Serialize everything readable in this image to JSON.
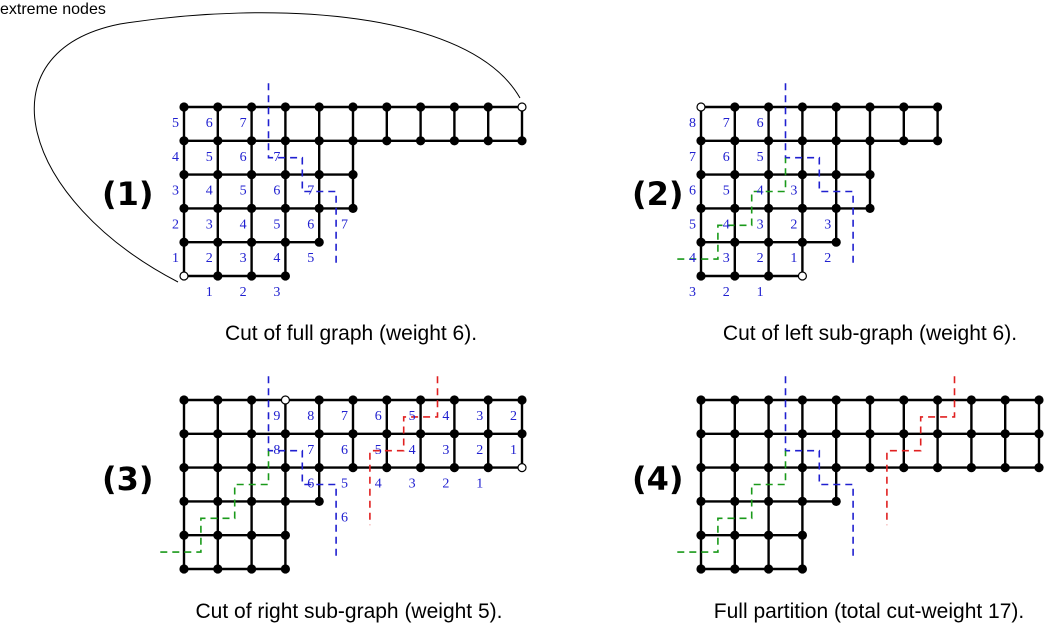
{
  "annotation": "extreme nodes",
  "colors": {
    "blue": "#2020d0",
    "green": "#1a9a1a",
    "red": "#e02020",
    "edge": "#000000"
  },
  "panels": [
    {
      "id": 1,
      "label": "(1)",
      "caption": "Cut of full graph (weight 6).",
      "rows": [
        [
          0,
          10
        ],
        [
          0,
          10
        ],
        [
          0,
          5
        ],
        [
          0,
          5
        ],
        [
          0,
          4
        ],
        [
          0,
          3
        ]
      ],
      "extreme_nodes": [
        [
          0,
          10
        ],
        [
          5,
          0
        ]
      ],
      "numbers": [
        {
          "t": "5",
          "c": 0,
          "r": 0
        },
        {
          "t": "6",
          "c": 1,
          "r": 0
        },
        {
          "t": "7",
          "c": 2,
          "r": 0
        },
        {
          "t": "4",
          "c": 0,
          "r": 1
        },
        {
          "t": "5",
          "c": 1,
          "r": 1
        },
        {
          "t": "6",
          "c": 2,
          "r": 1
        },
        {
          "t": "7",
          "c": 3,
          "r": 1
        },
        {
          "t": "3",
          "c": 0,
          "r": 2
        },
        {
          "t": "4",
          "c": 1,
          "r": 2
        },
        {
          "t": "5",
          "c": 2,
          "r": 2
        },
        {
          "t": "6",
          "c": 3,
          "r": 2
        },
        {
          "t": "7",
          "c": 4,
          "r": 2
        },
        {
          "t": "2",
          "c": 0,
          "r": 3
        },
        {
          "t": "3",
          "c": 1,
          "r": 3
        },
        {
          "t": "4",
          "c": 2,
          "r": 3
        },
        {
          "t": "5",
          "c": 3,
          "r": 3
        },
        {
          "t": "6",
          "c": 4,
          "r": 3
        },
        {
          "t": "7",
          "c": 5,
          "r": 3
        },
        {
          "t": "1",
          "c": 0,
          "r": 4
        },
        {
          "t": "2",
          "c": 1,
          "r": 4
        },
        {
          "t": "3",
          "c": 2,
          "r": 4
        },
        {
          "t": "4",
          "c": 3,
          "r": 4
        },
        {
          "t": "5",
          "c": 4,
          "r": 4
        },
        {
          "t": "1",
          "c": 1,
          "r": 5
        },
        {
          "t": "2",
          "c": 2,
          "r": 5
        },
        {
          "t": "3",
          "c": 3,
          "r": 5
        }
      ],
      "cuts": [
        {
          "color": "blue",
          "pts": [
            [
              2.5,
              -0.7
            ],
            [
              2.5,
              1.5
            ],
            [
              3.5,
              1.5
            ],
            [
              3.5,
              2.5
            ],
            [
              4.5,
              2.5
            ],
            [
              4.5,
              3.5
            ],
            [
              4.5,
              4.7
            ]
          ]
        }
      ]
    },
    {
      "id": 2,
      "label": "(2)",
      "caption": "Cut of left sub-graph (weight 6).",
      "rows": [
        [
          0,
          7
        ],
        [
          0,
          7
        ],
        [
          0,
          5
        ],
        [
          0,
          5
        ],
        [
          0,
          4
        ],
        [
          0,
          3
        ]
      ],
      "extreme_nodes": [
        [
          0,
          0
        ],
        [
          5,
          3
        ]
      ],
      "numbers": [
        {
          "t": "8",
          "c": 0,
          "r": 0
        },
        {
          "t": "7",
          "c": 1,
          "r": 0
        },
        {
          "t": "6",
          "c": 2,
          "r": 0
        },
        {
          "t": "7",
          "c": 0,
          "r": 1
        },
        {
          "t": "6",
          "c": 1,
          "r": 1
        },
        {
          "t": "5",
          "c": 2,
          "r": 1
        },
        {
          "t": "6",
          "c": 0,
          "r": 2
        },
        {
          "t": "5",
          "c": 1,
          "r": 2
        },
        {
          "t": "4",
          "c": 2,
          "r": 2
        },
        {
          "t": "3",
          "c": 3,
          "r": 2
        },
        {
          "t": "5",
          "c": 0,
          "r": 3
        },
        {
          "t": "4",
          "c": 1,
          "r": 3
        },
        {
          "t": "3",
          "c": 2,
          "r": 3
        },
        {
          "t": "2",
          "c": 3,
          "r": 3
        },
        {
          "t": "3",
          "c": 4,
          "r": 3
        },
        {
          "t": "4",
          "c": 0,
          "r": 4
        },
        {
          "t": "3",
          "c": 1,
          "r": 4
        },
        {
          "t": "2",
          "c": 2,
          "r": 4
        },
        {
          "t": "1",
          "c": 3,
          "r": 4
        },
        {
          "t": "2",
          "c": 4,
          "r": 4
        },
        {
          "t": "3",
          "c": 0,
          "r": 5
        },
        {
          "t": "2",
          "c": 1,
          "r": 5
        },
        {
          "t": "1",
          "c": 2,
          "r": 5
        }
      ],
      "cuts": [
        {
          "color": "blue",
          "pts": [
            [
              2.5,
              -0.7
            ],
            [
              2.5,
              1.5
            ],
            [
              3.5,
              1.5
            ],
            [
              3.5,
              2.5
            ],
            [
              4.5,
              2.5
            ],
            [
              4.5,
              4.7
            ]
          ]
        },
        {
          "color": "green",
          "pts": [
            [
              -0.7,
              4.5
            ],
            [
              0.5,
              4.5
            ],
            [
              0.5,
              3.5
            ],
            [
              1.5,
              3.5
            ],
            [
              1.5,
              2.5
            ],
            [
              2.5,
              2.5
            ],
            [
              2.5,
              1.5
            ]
          ]
        }
      ]
    },
    {
      "id": 3,
      "label": "(3)",
      "caption": "Cut of right sub-graph (weight 5).",
      "rows": [
        [
          0,
          10
        ],
        [
          0,
          10
        ],
        [
          0,
          10
        ],
        [
          0,
          4
        ],
        [
          0,
          3
        ],
        [
          0,
          3
        ]
      ],
      "extreme_nodes": [
        [
          0,
          3
        ],
        [
          2,
          10
        ]
      ],
      "numbers": [
        {
          "t": "9",
          "c": 3,
          "r": 0
        },
        {
          "t": "8",
          "c": 4,
          "r": 0
        },
        {
          "t": "7",
          "c": 5,
          "r": 0
        },
        {
          "t": "6",
          "c": 6,
          "r": 0
        },
        {
          "t": "5",
          "c": 7,
          "r": 0
        },
        {
          "t": "4",
          "c": 8,
          "r": 0
        },
        {
          "t": "3",
          "c": 9,
          "r": 0
        },
        {
          "t": "2",
          "c": 10,
          "r": 0
        },
        {
          "t": "8",
          "c": 3,
          "r": 1
        },
        {
          "t": "7",
          "c": 4,
          "r": 1
        },
        {
          "t": "6",
          "c": 5,
          "r": 1
        },
        {
          "t": "5",
          "c": 6,
          "r": 1
        },
        {
          "t": "4",
          "c": 7,
          "r": 1
        },
        {
          "t": "3",
          "c": 8,
          "r": 1
        },
        {
          "t": "2",
          "c": 9,
          "r": 1
        },
        {
          "t": "1",
          "c": 10,
          "r": 1
        },
        {
          "t": "6",
          "c": 4,
          "r": 2
        },
        {
          "t": "5",
          "c": 5,
          "r": 2
        },
        {
          "t": "4",
          "c": 6,
          "r": 2
        },
        {
          "t": "3",
          "c": 7,
          "r": 2
        },
        {
          "t": "2",
          "c": 8,
          "r": 2
        },
        {
          "t": "1",
          "c": 9,
          "r": 2
        },
        {
          "t": "6",
          "c": 5,
          "r": 3
        }
      ],
      "cuts": [
        {
          "color": "blue",
          "pts": [
            [
              2.5,
              -0.7
            ],
            [
              2.5,
              1.5
            ],
            [
              3.5,
              1.5
            ],
            [
              3.5,
              2.5
            ],
            [
              4.5,
              2.5
            ],
            [
              4.5,
              4.7
            ]
          ]
        },
        {
          "color": "green",
          "pts": [
            [
              -0.7,
              4.5
            ],
            [
              0.5,
              4.5
            ],
            [
              0.5,
              3.5
            ],
            [
              1.5,
              3.5
            ],
            [
              1.5,
              2.5
            ],
            [
              2.5,
              2.5
            ],
            [
              2.5,
              1.5
            ]
          ]
        },
        {
          "color": "red",
          "pts": [
            [
              7.5,
              -0.7
            ],
            [
              7.5,
              0.5
            ],
            [
              6.5,
              0.5
            ],
            [
              6.5,
              1.5
            ],
            [
              5.5,
              1.5
            ],
            [
              5.5,
              3.7
            ]
          ]
        }
      ]
    },
    {
      "id": 4,
      "label": "(4)",
      "caption": "Full partition (total cut-weight 17).",
      "rows": [
        [
          0,
          10
        ],
        [
          0,
          10
        ],
        [
          0,
          10
        ],
        [
          0,
          4
        ],
        [
          0,
          3
        ],
        [
          0,
          3
        ]
      ],
      "extreme_nodes": [],
      "numbers": [],
      "cuts": [
        {
          "color": "blue",
          "pts": [
            [
              2.5,
              -0.7
            ],
            [
              2.5,
              1.5
            ],
            [
              3.5,
              1.5
            ],
            [
              3.5,
              2.5
            ],
            [
              4.5,
              2.5
            ],
            [
              4.5,
              4.7
            ]
          ]
        },
        {
          "color": "green",
          "pts": [
            [
              -0.7,
              4.5
            ],
            [
              0.5,
              4.5
            ],
            [
              0.5,
              3.5
            ],
            [
              1.5,
              3.5
            ],
            [
              1.5,
              2.5
            ],
            [
              2.5,
              2.5
            ],
            [
              2.5,
              1.5
            ]
          ]
        },
        {
          "color": "red",
          "pts": [
            [
              7.5,
              -0.7
            ],
            [
              7.5,
              0.5
            ],
            [
              6.5,
              0.5
            ],
            [
              6.5,
              1.5
            ],
            [
              5.5,
              1.5
            ],
            [
              5.5,
              3.7
            ]
          ]
        }
      ]
    }
  ]
}
